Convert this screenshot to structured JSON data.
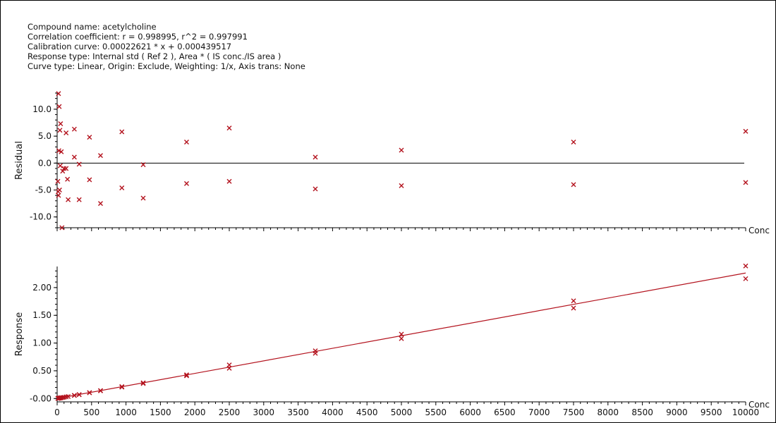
{
  "info": {
    "compound": "Compound name: acetylcholine",
    "correlation": "Correlation coefficient: r = 0.998995, r^2 = 0.997991",
    "calibration": "Calibration curve: 0.00022621 * x + 0.000439517",
    "response_type": "Response type: Internal std ( Ref 2 ), Area * ( IS conc./IS area )",
    "curve_type": "Curve type: Linear, Origin: Exclude, Weighting: 1/x, Axis trans: None"
  },
  "colors": {
    "marker": "#b3121d",
    "fit_line": "#b3121d",
    "axis": "#000000"
  },
  "chart_data": [
    {
      "type": "scatter",
      "ylabel": "Residual",
      "xlabel": "Conc",
      "xlim": [
        0,
        10000
      ],
      "ylim": [
        -12,
        13
      ],
      "yticks": [
        "-10.0",
        "-5.0",
        "0.0",
        "5.0",
        "10.0"
      ],
      "reference_line": 0,
      "points": [
        [
          20,
          12.9
        ],
        [
          30,
          10.5
        ],
        [
          40,
          6.1
        ],
        [
          50,
          7.3
        ],
        [
          60,
          2.1
        ],
        [
          25,
          2.3
        ],
        [
          45,
          -0.5
        ],
        [
          10,
          -3.4
        ],
        [
          15,
          -5.3
        ],
        [
          20,
          -6.0
        ],
        [
          35,
          -5.0
        ],
        [
          70,
          -12.0
        ],
        [
          80,
          -1.5
        ],
        [
          100,
          -1.0
        ],
        [
          130,
          5.6
        ],
        [
          130,
          -1.0
        ],
        [
          150,
          -3.0
        ],
        [
          160,
          -6.8
        ],
        [
          250,
          6.3
        ],
        [
          250,
          1.1
        ],
        [
          320,
          -0.2
        ],
        [
          320,
          -6.8
        ],
        [
          470,
          4.8
        ],
        [
          470,
          -3.1
        ],
        [
          630,
          1.4
        ],
        [
          630,
          -7.5
        ],
        [
          940,
          5.8
        ],
        [
          940,
          -4.6
        ],
        [
          1250,
          -0.3
        ],
        [
          1250,
          -6.5
        ],
        [
          1880,
          3.9
        ],
        [
          1880,
          -3.8
        ],
        [
          2500,
          6.5
        ],
        [
          2500,
          -3.4
        ],
        [
          3750,
          1.1
        ],
        [
          3750,
          -4.8
        ],
        [
          5000,
          2.4
        ],
        [
          5000,
          -4.2
        ],
        [
          7500,
          3.9
        ],
        [
          7500,
          -4.0
        ],
        [
          10000,
          5.9
        ],
        [
          10000,
          -3.6
        ]
      ]
    },
    {
      "type": "scatter",
      "ylabel": "Response",
      "xlabel": "Conc",
      "xlim": [
        0,
        10000
      ],
      "ylim": [
        -0.06,
        2.38
      ],
      "yticks": [
        "-0.00",
        "0.50",
        "1.00",
        "1.50",
        "2.00"
      ],
      "xticks": [
        "0",
        "500",
        "1000",
        "1500",
        "2000",
        "2500",
        "3000",
        "3500",
        "4000",
        "4500",
        "5000",
        "5500",
        "6000",
        "6500",
        "7000",
        "7500",
        "8000",
        "8500",
        "9000",
        "9500",
        "10000"
      ],
      "fit": {
        "slope": 0.00022621,
        "intercept": 0.000439517
      },
      "points": [
        [
          10,
          0.002
        ],
        [
          20,
          0.005
        ],
        [
          30,
          0.007
        ],
        [
          40,
          0.01
        ],
        [
          50,
          0.012
        ],
        [
          60,
          0.014
        ],
        [
          80,
          0.018
        ],
        [
          100,
          0.023
        ],
        [
          130,
          0.03
        ],
        [
          160,
          0.036
        ],
        [
          250,
          0.057
        ],
        [
          250,
          0.055
        ],
        [
          320,
          0.072
        ],
        [
          320,
          0.068
        ],
        [
          470,
          0.107
        ],
        [
          470,
          0.103
        ],
        [
          630,
          0.143
        ],
        [
          630,
          0.138
        ],
        [
          940,
          0.215
        ],
        [
          940,
          0.205
        ],
        [
          1250,
          0.283
        ],
        [
          1250,
          0.27
        ],
        [
          1880,
          0.428
        ],
        [
          1880,
          0.41
        ],
        [
          2500,
          0.605
        ],
        [
          2500,
          0.545
        ],
        [
          3750,
          0.86
        ],
        [
          3750,
          0.815
        ],
        [
          5000,
          1.16
        ],
        [
          5000,
          1.08
        ],
        [
          7500,
          1.76
        ],
        [
          7500,
          1.63
        ],
        [
          10000,
          2.39
        ],
        [
          10000,
          2.16
        ]
      ]
    }
  ]
}
